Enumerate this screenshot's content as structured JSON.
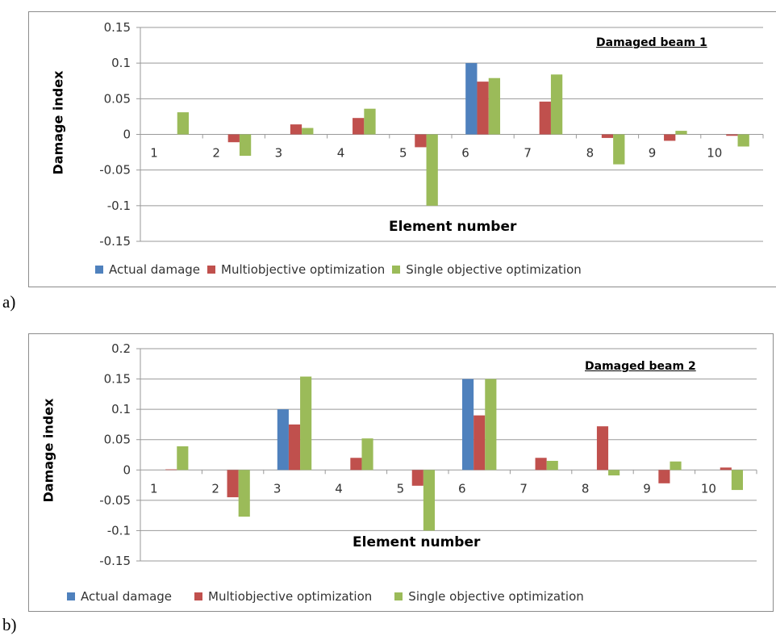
{
  "panels": [
    {
      "label": "a)"
    },
    {
      "label": "b)"
    }
  ],
  "colors": {
    "actual": "#4f81bd",
    "multi": "#c0504d",
    "single": "#9bbb59",
    "grid": "#999999",
    "axis_text": "#333333"
  },
  "chart_data": [
    {
      "type": "bar",
      "title": "Damaged beam 1",
      "xlabel": "Element number",
      "ylabel": "Damage index",
      "ylim": [
        -0.15,
        0.15
      ],
      "yticks": [
        "0.15",
        "0.1",
        "0.05",
        "0",
        "-0.05",
        "-0.1",
        "-0.15"
      ],
      "yticks_values": [
        0.15,
        0.1,
        0.05,
        0,
        -0.05,
        -0.1,
        -0.15
      ],
      "grid": "horizontal",
      "legend_position": "bottom",
      "categories": [
        "1",
        "2",
        "3",
        "4",
        "5",
        "6",
        "7",
        "8",
        "9",
        "10"
      ],
      "series": [
        {
          "name": "Actual damage",
          "values": [
            0,
            0,
            0,
            0,
            0,
            0.1,
            0,
            0,
            0,
            0
          ]
        },
        {
          "name": "Multiobjective optimization",
          "values": [
            0,
            -0.011,
            0.014,
            0.023,
            -0.018,
            0.074,
            0.046,
            -0.005,
            -0.009,
            -0.002
          ]
        },
        {
          "name": "Single objective optimization",
          "values": [
            0.031,
            -0.03,
            0.009,
            0.036,
            -0.1,
            0.079,
            0.084,
            -0.042,
            0.005,
            -0.017
          ]
        }
      ]
    },
    {
      "type": "bar",
      "title": "Damaged beam 2",
      "xlabel": "Element number",
      "ylabel": "Damage index",
      "ylim": [
        -0.15,
        0.2
      ],
      "yticks": [
        "0.2",
        "0.15",
        "0.1",
        "0.05",
        "0",
        "-0.05",
        "-0.1",
        "-0.15"
      ],
      "yticks_values": [
        0.2,
        0.15,
        0.1,
        0.05,
        0,
        -0.05,
        -0.1,
        -0.15
      ],
      "grid": "horizontal",
      "legend_position": "bottom",
      "categories": [
        "1",
        "2",
        "3",
        "4",
        "5",
        "6",
        "7",
        "8",
        "9",
        "10"
      ],
      "series": [
        {
          "name": "Actual damage",
          "values": [
            0,
            0,
            0.1,
            0,
            0,
            0.15,
            0,
            0,
            0,
            0
          ]
        },
        {
          "name": "Multiobjective optimization",
          "values": [
            0.001,
            -0.045,
            0.075,
            0.02,
            -0.026,
            0.09,
            0.02,
            0.072,
            -0.022,
            0.004
          ]
        },
        {
          "name": "Single objective optimization",
          "values": [
            0.039,
            -0.077,
            0.154,
            0.052,
            -0.1,
            0.15,
            0.015,
            -0.009,
            0.014,
            -0.033
          ]
        }
      ]
    }
  ]
}
